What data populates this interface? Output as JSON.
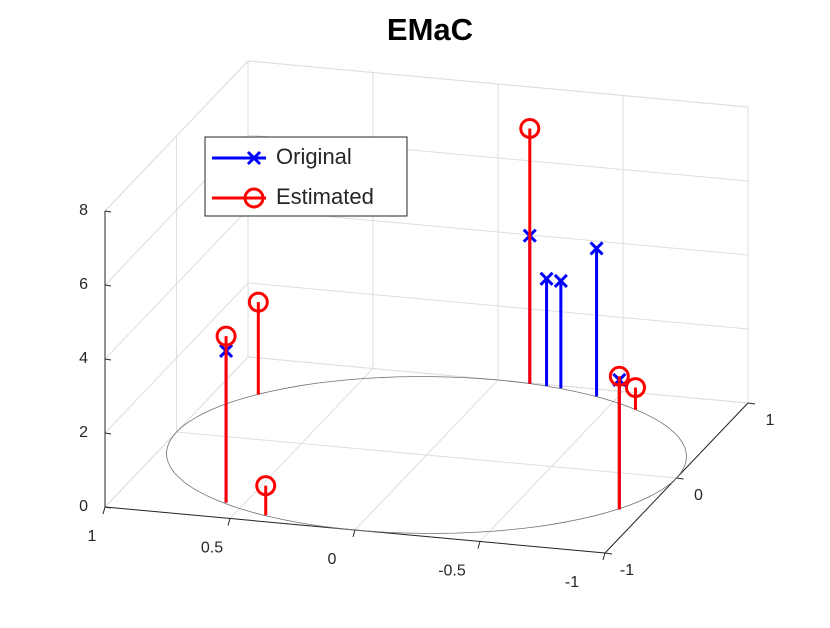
{
  "chart_data": {
    "type": "stem3",
    "title": "EMaC",
    "xlim": [
      -1,
      1
    ],
    "ylim": [
      -1,
      1
    ],
    "zlim": [
      0,
      8
    ],
    "xticks": [
      1,
      0.5,
      0,
      -0.5,
      -1
    ],
    "yticks": [
      -1,
      0,
      1
    ],
    "zticks": [
      0,
      2,
      4,
      6,
      8
    ],
    "grid": true,
    "legend": "top-left",
    "series": [
      {
        "name": "Original",
        "color": "#0000ff",
        "marker": "x",
        "x": [
          0.57,
          -0.13,
          -0.2,
          -0.26,
          -0.42,
          -0.9
        ],
        "y": [
          -0.81,
          0.99,
          0.98,
          0.97,
          0.91,
          -0.45
        ],
        "z": [
          4.1,
          4.0,
          2.9,
          2.9,
          4.0,
          3.5
        ]
      },
      {
        "name": "Estimated",
        "color": "#ff0000",
        "marker": "o",
        "x": [
          0.57,
          0.83,
          0.38,
          -0.13,
          -0.9,
          -0.61
        ],
        "y": [
          -0.81,
          0.55,
          -0.92,
          0.99,
          -0.45,
          0.79
        ],
        "z": [
          4.5,
          2.5,
          0.8,
          6.9,
          3.6,
          0.6
        ]
      }
    ]
  }
}
